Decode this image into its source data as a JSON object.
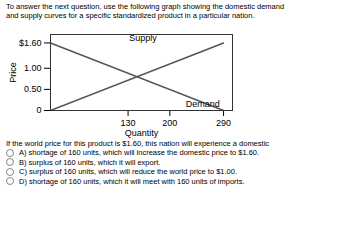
{
  "chart_data": {
    "type": "line",
    "title": "To answer the next question, use the following graph showing the domestic demand",
    "subtitle": "and supply curves for a specific standardized product in a particular nation.",
    "xlabel": "Quantity",
    "ylabel": "Price",
    "series": [
      {
        "color": "#555555",
        "x": [
          0,
          290
        ],
        "values": [
          0.0,
          1.6
        ]
      },
      {
        "color": "#555555",
        "x": [
          0,
          290
        ],
        "values": [
          1.6,
          0.0
        ]
      }
    ],
    "annotations": [
      {
        "text": "Supply",
        "x": 155,
        "y": 1.65
      },
      {
        "text": "Demand",
        "x": 255,
        "y": 0.08
      }
    ],
    "xlim": [
      0,
      305
    ],
    "ylim": [
      0,
      1.8
    ],
    "xticks": [
      130,
      200,
      290
    ],
    "yticks": [
      0,
      {
        "value": 0.5,
        "label": "0.50"
      },
      {
        "value": 1.0,
        "label": "1.00"
      },
      {
        "value": 1.6,
        "label": "$1.60"
      }
    ],
    "grid": false,
    "question": "If the world price for this product is $1.60, this nation will experience a domestic",
    "answer_options": [
      "A)  shortage of 160 units, which will increase the domestic price to $1.60.",
      "B)  surplus of 160 units, which it will export.",
      "C)  surplus of 160 units, which will reduce the world price to $1.00.",
      "D)  shortage of 160 units, which it will meet with 160 units of imports."
    ]
  }
}
